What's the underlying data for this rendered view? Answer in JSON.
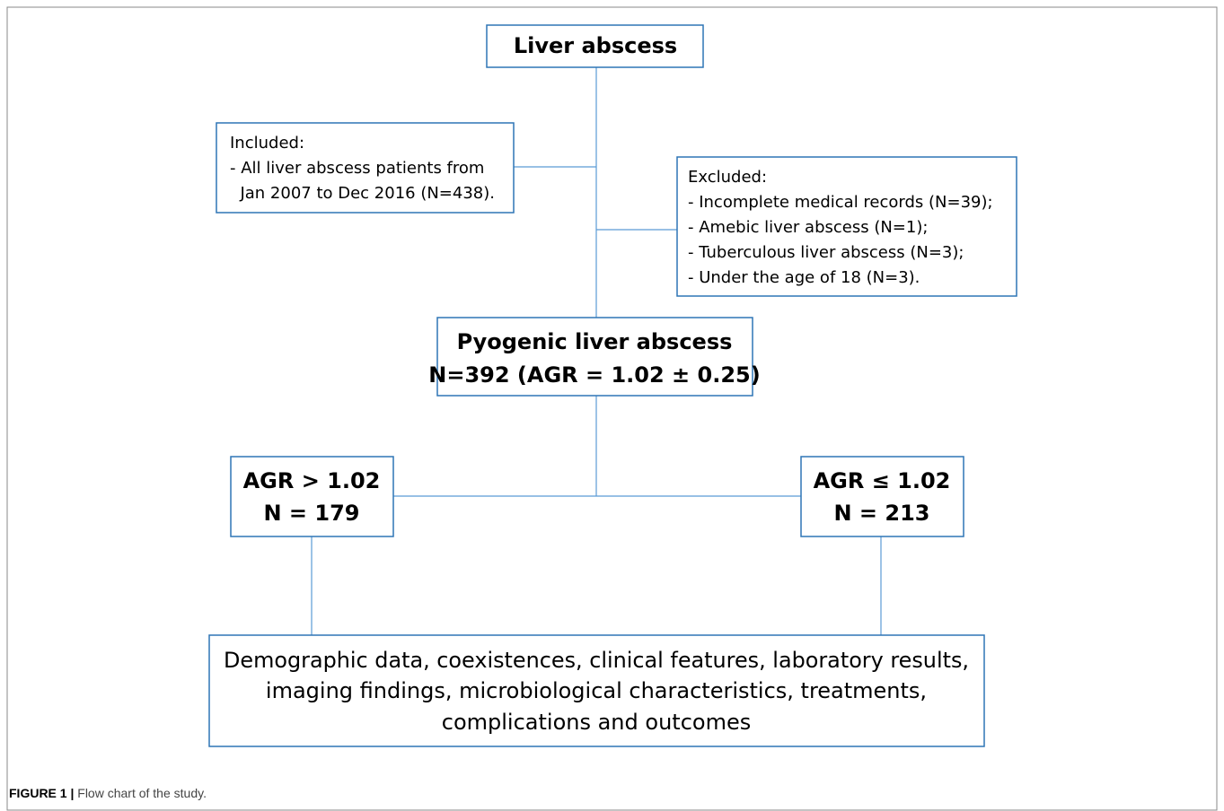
{
  "nodes": [
    {
      "lines": [
        "Liver abscess"
      ]
    },
    {
      "lines": [
        "Included:",
        "- All liver abscess patients from",
        "  Jan 2007 to Dec 2016 (N=438)."
      ]
    },
    {
      "lines": [
        "Excluded:",
        "- Incomplete medical records (N=39);",
        "- Amebic liver abscess (N=1);",
        "- Tuberculous liver abscess (N=3);",
        "- Under the age of 18 (N=3)."
      ]
    },
    {
      "lines": [
        "Pyogenic liver abscess",
        "N=392 (AGR = 1.02 ± 0.25)"
      ]
    },
    {
      "lines": [
        "AGR > 1.02",
        "N = 179"
      ]
    },
    {
      "lines": [
        "AGR ≤ 1.02",
        "N = 213"
      ]
    },
    {
      "lines": [
        "Demographic data, coexistences, clinical features, laboratory results,",
        "imaging findings, microbiological characteristics, treatments,",
        "complications and outcomes"
      ]
    }
  ],
  "caption": {
    "label": "FIGURE 1 |",
    "text": " Flow chart of the study."
  }
}
